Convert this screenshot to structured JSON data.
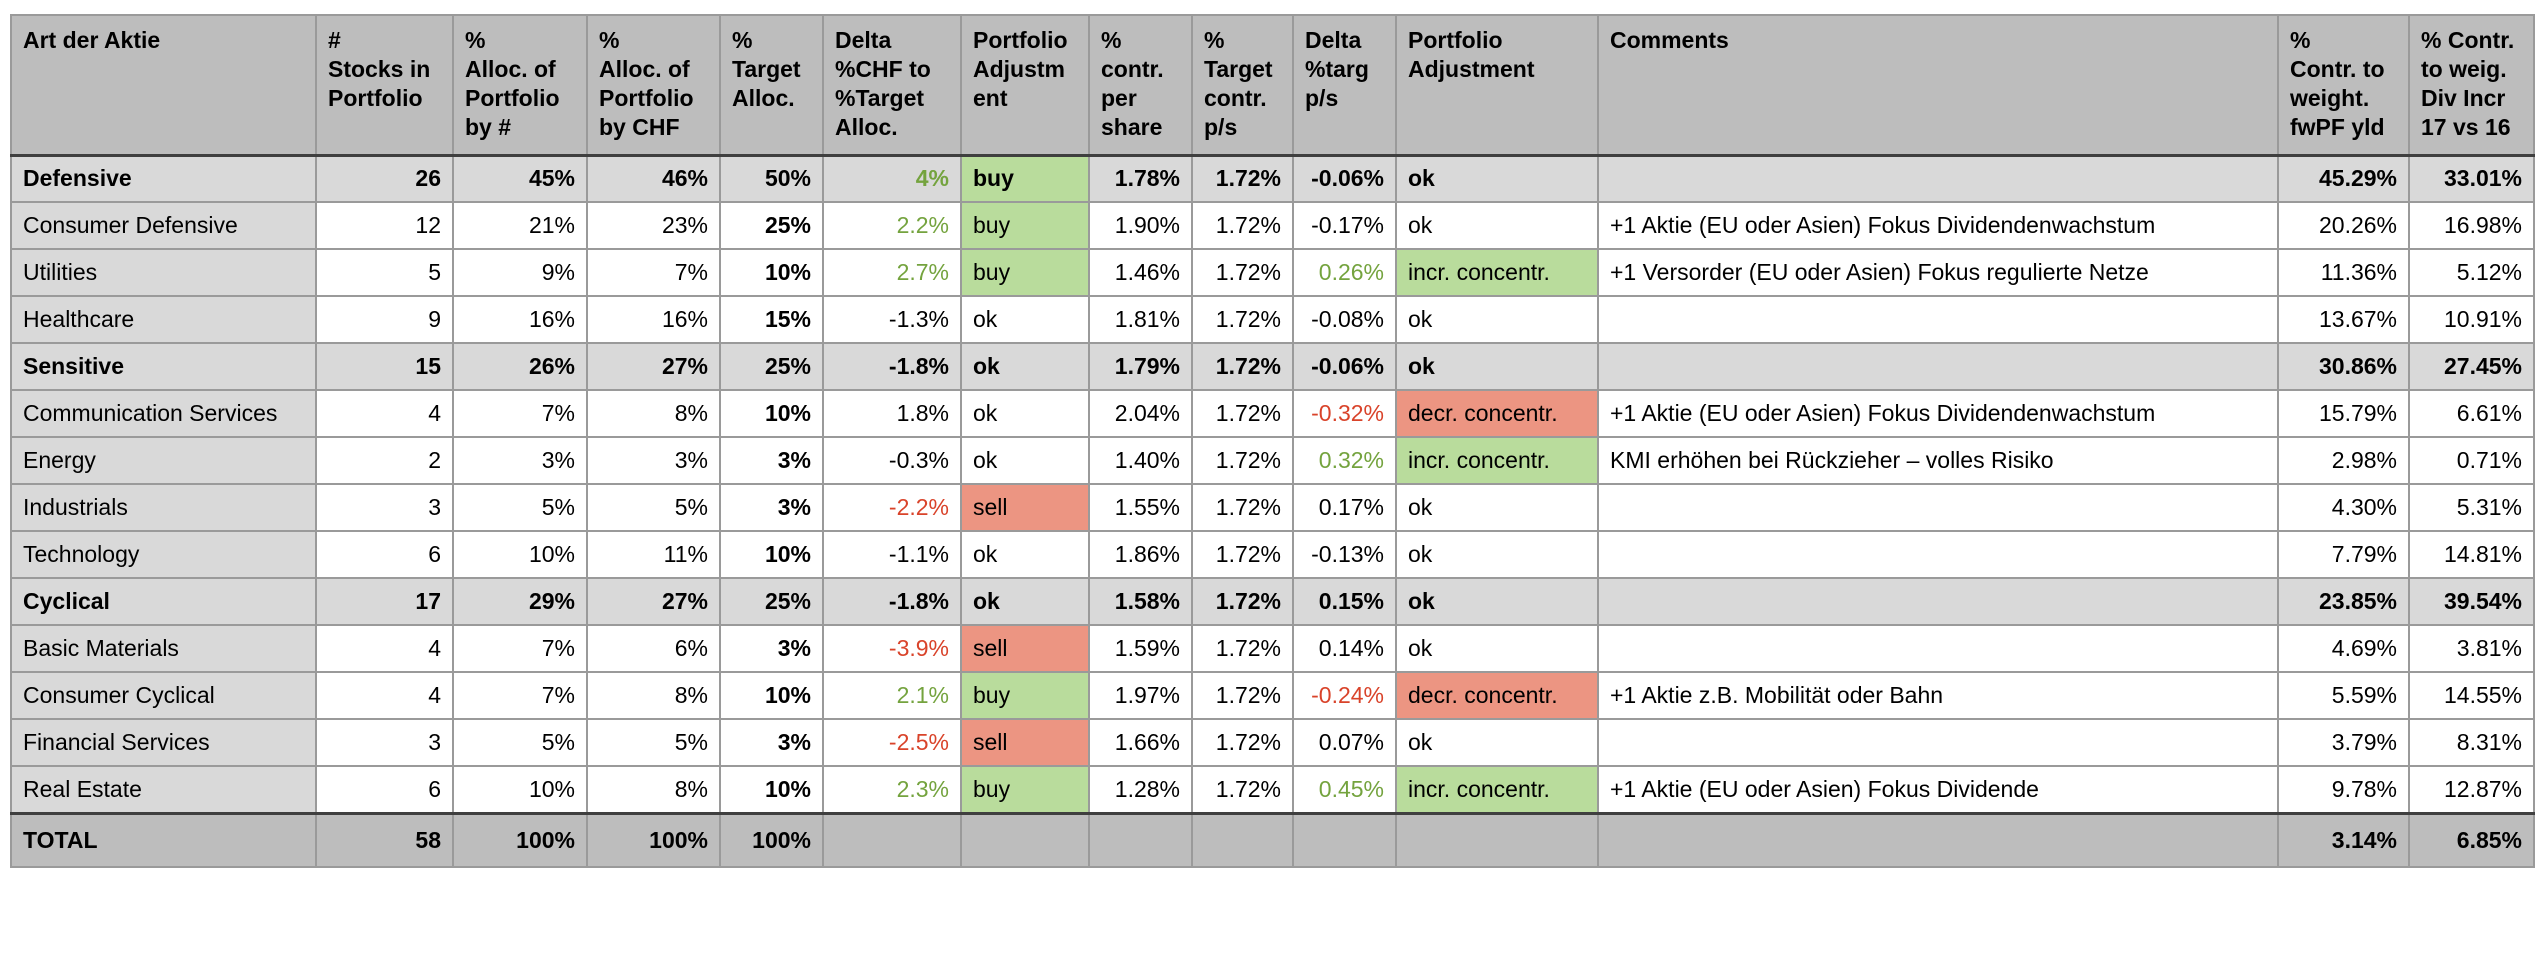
{
  "colors": {
    "header_bg": "#bdbdbd",
    "total_bg": "#bdbdbd",
    "section_bg": "#d9d9d9",
    "label_column_bg": "#d9d9d9",
    "grid_line": "#9a9a9a",
    "strong_line": "#3f3f3f",
    "positive_text": "#74a33e",
    "negative_text": "#d9432a",
    "positive_bg": "#b9dc9c",
    "negative_bg": "#ec9582"
  },
  "table": {
    "columns": [
      {
        "key": "name",
        "label": "Art der Aktie"
      },
      {
        "key": "stocks",
        "label": "#\nStocks in\nPortfolio"
      },
      {
        "key": "alloc_by_num",
        "label": "%\nAlloc. of\nPortfolio\nby #"
      },
      {
        "key": "alloc_by_chf",
        "label": "%\nAlloc. of\nPortfolio\nby CHF"
      },
      {
        "key": "target_alloc",
        "label": "%\nTarget\nAlloc."
      },
      {
        "key": "delta_chf",
        "label": "Delta\n%CHF to\n%Target\nAlloc."
      },
      {
        "key": "adj1",
        "label": "Portfolio\nAdjustm\nent"
      },
      {
        "key": "contr_per_share",
        "label": "%\ncontr.\nper\nshare"
      },
      {
        "key": "target_contr_ps",
        "label": "%\nTarget\ncontr.\np/s"
      },
      {
        "key": "delta_targ_ps",
        "label": "Delta\n%targ\np/s"
      },
      {
        "key": "adj2",
        "label": "Portfolio\nAdjustment"
      },
      {
        "key": "comment",
        "label": "Comments"
      },
      {
        "key": "contr_weight_fwpf_yld",
        "label": "%\nContr. to\nweight.\nfwPF yld"
      },
      {
        "key": "contr_weig_div_incr",
        "label": "% Contr.\nto weig.\nDiv Incr\n17 vs 16"
      }
    ],
    "rows": [
      {
        "type": "section",
        "name": "Defensive",
        "stocks": "26",
        "alloc_by_num": "45%",
        "alloc_by_chf": "46%",
        "target_alloc": "50%",
        "delta_chf": "4%",
        "delta_chf_color": "green",
        "adj1": "buy",
        "adj1_bg": "green",
        "contr_per_share": "1.78%",
        "target_contr_ps": "1.72%",
        "delta_targ_ps": "-0.06%",
        "delta_targ_color": "",
        "adj2": "ok",
        "adj2_bg": "",
        "comment": "",
        "contr_weight_fwpf_yld": "45.29%",
        "contr_weig_div_incr": "33.01%"
      },
      {
        "type": "item",
        "name": "Consumer Defensive",
        "stocks": "12",
        "alloc_by_num": "21%",
        "alloc_by_chf": "23%",
        "target_alloc": "25%",
        "delta_chf": "2.2%",
        "delta_chf_color": "green",
        "adj1": "buy",
        "adj1_bg": "green",
        "contr_per_share": "1.90%",
        "target_contr_ps": "1.72%",
        "delta_targ_ps": "-0.17%",
        "delta_targ_color": "",
        "adj2": "ok",
        "adj2_bg": "",
        "comment": "+1 Aktie (EU oder Asien) Fokus Dividendenwachstum",
        "contr_weight_fwpf_yld": "20.26%",
        "contr_weig_div_incr": "16.98%"
      },
      {
        "type": "item",
        "name": "Utilities",
        "stocks": "5",
        "alloc_by_num": "9%",
        "alloc_by_chf": "7%",
        "target_alloc": "10%",
        "delta_chf": "2.7%",
        "delta_chf_color": "green",
        "adj1": "buy",
        "adj1_bg": "green",
        "contr_per_share": "1.46%",
        "target_contr_ps": "1.72%",
        "delta_targ_ps": "0.26%",
        "delta_targ_color": "green",
        "adj2": "incr. concentr.",
        "adj2_bg": "green",
        "comment": "+1 Versorder (EU oder Asien) Fokus regulierte Netze",
        "contr_weight_fwpf_yld": "11.36%",
        "contr_weig_div_incr": "5.12%"
      },
      {
        "type": "item",
        "name": "Healthcare",
        "stocks": "9",
        "alloc_by_num": "16%",
        "alloc_by_chf": "16%",
        "target_alloc": "15%",
        "delta_chf": "-1.3%",
        "delta_chf_color": "",
        "adj1": "ok",
        "adj1_bg": "",
        "contr_per_share": "1.81%",
        "target_contr_ps": "1.72%",
        "delta_targ_ps": "-0.08%",
        "delta_targ_color": "",
        "adj2": "ok",
        "adj2_bg": "",
        "comment": "",
        "contr_weight_fwpf_yld": "13.67%",
        "contr_weig_div_incr": "10.91%"
      },
      {
        "type": "section",
        "name": "Sensitive",
        "stocks": "15",
        "alloc_by_num": "26%",
        "alloc_by_chf": "27%",
        "target_alloc": "25%",
        "delta_chf": "-1.8%",
        "delta_chf_color": "",
        "adj1": "ok",
        "adj1_bg": "",
        "contr_per_share": "1.79%",
        "target_contr_ps": "1.72%",
        "delta_targ_ps": "-0.06%",
        "delta_targ_color": "",
        "adj2": "ok",
        "adj2_bg": "",
        "comment": "",
        "contr_weight_fwpf_yld": "30.86%",
        "contr_weig_div_incr": "27.45%"
      },
      {
        "type": "item",
        "name": "Communication Services",
        "stocks": "4",
        "alloc_by_num": "7%",
        "alloc_by_chf": "8%",
        "target_alloc": "10%",
        "delta_chf": "1.8%",
        "delta_chf_color": "",
        "adj1": "ok",
        "adj1_bg": "",
        "contr_per_share": "2.04%",
        "target_contr_ps": "1.72%",
        "delta_targ_ps": "-0.32%",
        "delta_targ_color": "red",
        "adj2": "decr. concentr.",
        "adj2_bg": "red",
        "comment": "+1 Aktie (EU oder Asien) Fokus Dividendenwachstum",
        "contr_weight_fwpf_yld": "15.79%",
        "contr_weig_div_incr": "6.61%"
      },
      {
        "type": "item",
        "name": "Energy",
        "stocks": "2",
        "alloc_by_num": "3%",
        "alloc_by_chf": "3%",
        "target_alloc": "3%",
        "delta_chf": "-0.3%",
        "delta_chf_color": "",
        "adj1": "ok",
        "adj1_bg": "",
        "contr_per_share": "1.40%",
        "target_contr_ps": "1.72%",
        "delta_targ_ps": "0.32%",
        "delta_targ_color": "green",
        "adj2": "incr. concentr.",
        "adj2_bg": "green",
        "comment": "KMI erhöhen bei Rückzieher – volles Risiko",
        "contr_weight_fwpf_yld": "2.98%",
        "contr_weig_div_incr": "0.71%"
      },
      {
        "type": "item",
        "name": "Industrials",
        "stocks": "3",
        "alloc_by_num": "5%",
        "alloc_by_chf": "5%",
        "target_alloc": "3%",
        "delta_chf": "-2.2%",
        "delta_chf_color": "red",
        "adj1": "sell",
        "adj1_bg": "red",
        "contr_per_share": "1.55%",
        "target_contr_ps": "1.72%",
        "delta_targ_ps": "0.17%",
        "delta_targ_color": "",
        "adj2": "ok",
        "adj2_bg": "",
        "comment": "",
        "contr_weight_fwpf_yld": "4.30%",
        "contr_weig_div_incr": "5.31%"
      },
      {
        "type": "item",
        "name": "Technology",
        "stocks": "6",
        "alloc_by_num": "10%",
        "alloc_by_chf": "11%",
        "target_alloc": "10%",
        "delta_chf": "-1.1%",
        "delta_chf_color": "",
        "adj1": "ok",
        "adj1_bg": "",
        "contr_per_share": "1.86%",
        "target_contr_ps": "1.72%",
        "delta_targ_ps": "-0.13%",
        "delta_targ_color": "",
        "adj2": "ok",
        "adj2_bg": "",
        "comment": "",
        "contr_weight_fwpf_yld": "7.79%",
        "contr_weig_div_incr": "14.81%"
      },
      {
        "type": "section",
        "name": "Cyclical",
        "stocks": "17",
        "alloc_by_num": "29%",
        "alloc_by_chf": "27%",
        "target_alloc": "25%",
        "delta_chf": "-1.8%",
        "delta_chf_color": "",
        "adj1": "ok",
        "adj1_bg": "",
        "contr_per_share": "1.58%",
        "target_contr_ps": "1.72%",
        "delta_targ_ps": "0.15%",
        "delta_targ_color": "",
        "adj2": "ok",
        "adj2_bg": "",
        "comment": "",
        "contr_weight_fwpf_yld": "23.85%",
        "contr_weig_div_incr": "39.54%"
      },
      {
        "type": "item",
        "name": "Basic Materials",
        "stocks": "4",
        "alloc_by_num": "7%",
        "alloc_by_chf": "6%",
        "target_alloc": "3%",
        "delta_chf": "-3.9%",
        "delta_chf_color": "red",
        "adj1": "sell",
        "adj1_bg": "red",
        "contr_per_share": "1.59%",
        "target_contr_ps": "1.72%",
        "delta_targ_ps": "0.14%",
        "delta_targ_color": "",
        "adj2": "ok",
        "adj2_bg": "",
        "comment": "",
        "contr_weight_fwpf_yld": "4.69%",
        "contr_weig_div_incr": "3.81%"
      },
      {
        "type": "item",
        "name": "Consumer Cyclical",
        "stocks": "4",
        "alloc_by_num": "7%",
        "alloc_by_chf": "8%",
        "target_alloc": "10%",
        "delta_chf": "2.1%",
        "delta_chf_color": "green",
        "adj1": "buy",
        "adj1_bg": "green",
        "contr_per_share": "1.97%",
        "target_contr_ps": "1.72%",
        "delta_targ_ps": "-0.24%",
        "delta_targ_color": "red",
        "adj2": "decr. concentr.",
        "adj2_bg": "red",
        "comment": "+1 Aktie z.B. Mobilität oder Bahn",
        "contr_weight_fwpf_yld": "5.59%",
        "contr_weig_div_incr": "14.55%"
      },
      {
        "type": "item",
        "name": "Financial Services",
        "stocks": "3",
        "alloc_by_num": "5%",
        "alloc_by_chf": "5%",
        "target_alloc": "3%",
        "delta_chf": "-2.5%",
        "delta_chf_color": "red",
        "adj1": "sell",
        "adj1_bg": "red",
        "contr_per_share": "1.66%",
        "target_contr_ps": "1.72%",
        "delta_targ_ps": "0.07%",
        "delta_targ_color": "",
        "adj2": "ok",
        "adj2_bg": "",
        "comment": "",
        "contr_weight_fwpf_yld": "3.79%",
        "contr_weig_div_incr": "8.31%"
      },
      {
        "type": "item",
        "name": "Real Estate",
        "stocks": "6",
        "alloc_by_num": "10%",
        "alloc_by_chf": "8%",
        "target_alloc": "10%",
        "delta_chf": "2.3%",
        "delta_chf_color": "green",
        "adj1": "buy",
        "adj1_bg": "green",
        "contr_per_share": "1.28%",
        "target_contr_ps": "1.72%",
        "delta_targ_ps": "0.45%",
        "delta_targ_color": "green",
        "adj2": "incr. concentr.",
        "adj2_bg": "green",
        "comment": "+1 Aktie (EU oder Asien) Fokus Dividende",
        "contr_weight_fwpf_yld": "9.78%",
        "contr_weig_div_incr": "12.87%"
      },
      {
        "type": "total",
        "name": "TOTAL",
        "stocks": "58",
        "alloc_by_num": "100%",
        "alloc_by_chf": "100%",
        "target_alloc": "100%",
        "delta_chf": "",
        "delta_chf_color": "",
        "adj1": "",
        "adj1_bg": "",
        "contr_per_share": "",
        "target_contr_ps": "",
        "delta_targ_ps": "",
        "delta_targ_color": "",
        "adj2": "",
        "adj2_bg": "",
        "comment": "",
        "contr_weight_fwpf_yld": "3.14%",
        "contr_weig_div_incr": "6.85%"
      }
    ]
  }
}
